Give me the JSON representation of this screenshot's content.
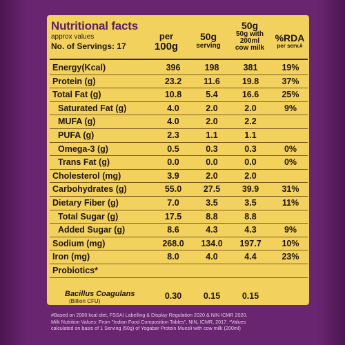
{
  "header": {
    "title": "Nutritional facts",
    "approx": "approx values",
    "servings": "No. of Servings: 17"
  },
  "columns": {
    "per_top": "per",
    "per_bottom": "100g",
    "serving_top": "50g",
    "serving_bottom": "serving",
    "milk_top": "50g",
    "milk_l1": "50g with",
    "milk_l2": "200ml",
    "milk_l3": "cow milk",
    "rda_top": "%RDA",
    "rda_bottom": "per serv.#"
  },
  "rows": [
    {
      "label": "Energy(Kcal)",
      "per100": "396",
      "serving": "198",
      "milk": "381",
      "rda": "19%"
    },
    {
      "label": "Protein (g)",
      "per100": "23.2",
      "serving": "11.6",
      "milk": "19.8",
      "rda": "37%"
    },
    {
      "label": "Total Fat (g)",
      "per100": "10.8",
      "serving": "5.4",
      "milk": "16.6",
      "rda": "25%"
    },
    {
      "label": "Saturated Fat (g)",
      "per100": "4.0",
      "serving": "2.0",
      "milk": "2.0",
      "rda": "9%"
    },
    {
      "label": "MUFA (g)",
      "per100": "4.0",
      "serving": "2.0",
      "milk": "2.2",
      "rda": ""
    },
    {
      "label": "PUFA (g)",
      "per100": "2.3",
      "serving": "1.1",
      "milk": "1.1",
      "rda": ""
    },
    {
      "label": "Omega-3 (g)",
      "per100": "0.5",
      "serving": "0.3",
      "milk": "0.3",
      "rda": "0%"
    },
    {
      "label": "Trans Fat (g)",
      "per100": "0.0",
      "serving": "0.0",
      "milk": "0.0",
      "rda": "0%"
    },
    {
      "label": "Cholesterol (mg)",
      "per100": "3.9",
      "serving": "2.0",
      "milk": "2.0",
      "rda": ""
    },
    {
      "label": "Carbohydrates (g)",
      "per100": "55.0",
      "serving": "27.5",
      "milk": "39.9",
      "rda": "31%"
    },
    {
      "label": "Dietary Fiber (g)",
      "per100": "7.0",
      "serving": "3.5",
      "milk": "3.5",
      "rda": "11%"
    },
    {
      "label": "Total Sugar (g)",
      "per100": "17.5",
      "serving": "8.8",
      "milk": "8.8",
      "rda": ""
    },
    {
      "label": "Added Sugar (g)",
      "per100": "8.6",
      "serving": "4.3",
      "milk": "4.3",
      "rda": "9%"
    },
    {
      "label": "Sodium (mg)",
      "per100": "268.0",
      "serving": "134.0",
      "milk": "197.7",
      "rda": "10%"
    },
    {
      "label": "Iron (mg)",
      "per100": "8.0",
      "serving": "4.0",
      "milk": "4.4",
      "rda": "23%"
    },
    {
      "label": "Probiotics*",
      "per100": "",
      "serving": "",
      "milk": "",
      "rda": ""
    }
  ],
  "probiotic": {
    "name": "Bacillus Coagulans",
    "unit": "(Billion CFU)",
    "per100": "0.30",
    "serving": "0.15",
    "milk": "0.15"
  },
  "footnotes": [
    "#Based on 2000 kcal diet, FSSAI Labelling & Display Regulation 2020 & NIN ICMR 2020.",
    "Milk Nutrition Values: From \"Indian Food Composition Tables\", NIN, ICMR, 2017. *Values",
    "calculated on basis of 1 Serving (50g) of Yogabar Protein Muesli with cow milk (200ml)"
  ]
}
